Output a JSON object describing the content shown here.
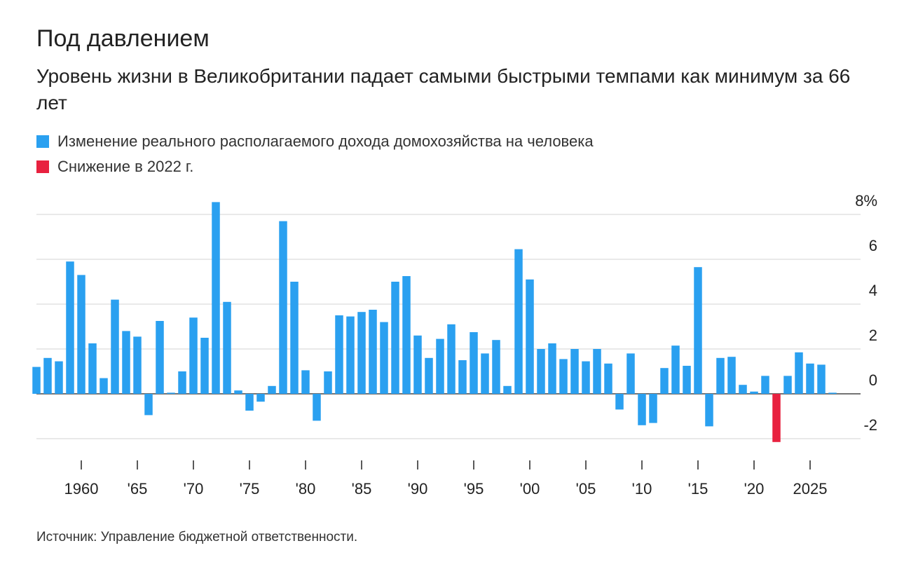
{
  "title": "Под давлением",
  "subtitle": "Уровень жизни в Великобритании падает самыми быстрыми темпами как минимум за 66 лет",
  "legend": [
    {
      "label": "Изменение реального располагаемого дохода домохозяйства на человека",
      "color": "#2aa0f0"
    },
    {
      "label": "Снижение в 2022 г.",
      "color": "#e8213f"
    }
  ],
  "source": "Источник: Управление бюджетной ответственности.",
  "chart_data": {
    "type": "bar",
    "ylim": [
      -2.5,
      8.3
    ],
    "y_ticks": [
      8,
      6,
      4,
      2,
      0,
      -2
    ],
    "y_tick_labels": [
      "8%",
      "6",
      "4",
      "2",
      "0",
      "-2"
    ],
    "x_ticks": [
      1960,
      1965,
      1970,
      1975,
      1980,
      1985,
      1990,
      1995,
      2000,
      2005,
      2010,
      2015,
      2020,
      2025
    ],
    "x_tick_labels": [
      "1960",
      "'65",
      "'70",
      "'75",
      "'80",
      "'85",
      "'90",
      "'95",
      "'00",
      "'05",
      "'10",
      "'15",
      "'20",
      "2025"
    ],
    "highlight_year": 2022,
    "colors": {
      "base": "#2aa0f0",
      "highlight": "#e8213f"
    },
    "grid": true,
    "years": [
      1956,
      1957,
      1958,
      1959,
      1960,
      1961,
      1962,
      1963,
      1964,
      1965,
      1966,
      1967,
      1968,
      1969,
      1970,
      1971,
      1972,
      1973,
      1974,
      1975,
      1976,
      1977,
      1978,
      1979,
      1980,
      1981,
      1982,
      1983,
      1984,
      1985,
      1986,
      1987,
      1988,
      1989,
      1990,
      1991,
      1992,
      1993,
      1994,
      1995,
      1996,
      1997,
      1998,
      1999,
      2000,
      2001,
      2002,
      2003,
      2004,
      2005,
      2006,
      2007,
      2008,
      2009,
      2010,
      2011,
      2012,
      2013,
      2014,
      2015,
      2016,
      2017,
      2018,
      2019,
      2020,
      2021,
      2022,
      2023,
      2024,
      2025,
      2026,
      2027
    ],
    "values": [
      1.2,
      1.6,
      1.45,
      5.9,
      5.3,
      2.25,
      0.7,
      4.2,
      2.8,
      2.55,
      -0.95,
      3.25,
      0.05,
      1.0,
      3.4,
      2.5,
      8.55,
      4.1,
      0.15,
      -0.75,
      -0.35,
      0.35,
      7.7,
      5.0,
      1.05,
      -1.2,
      1.0,
      3.5,
      3.45,
      3.65,
      3.75,
      3.2,
      5.0,
      5.25,
      2.6,
      1.6,
      2.45,
      3.1,
      1.5,
      2.75,
      1.8,
      2.4,
      0.35,
      6.45,
      5.1,
      2.0,
      2.25,
      1.55,
      2.0,
      1.45,
      2.0,
      1.35,
      -0.7,
      1.8,
      -1.4,
      -1.3,
      1.15,
      2.15,
      1.25,
      5.65,
      -1.45,
      1.6,
      1.65,
      0.4,
      0.1,
      0.8,
      -2.15,
      0.8,
      1.85,
      1.35,
      1.3,
      0.05
    ]
  }
}
